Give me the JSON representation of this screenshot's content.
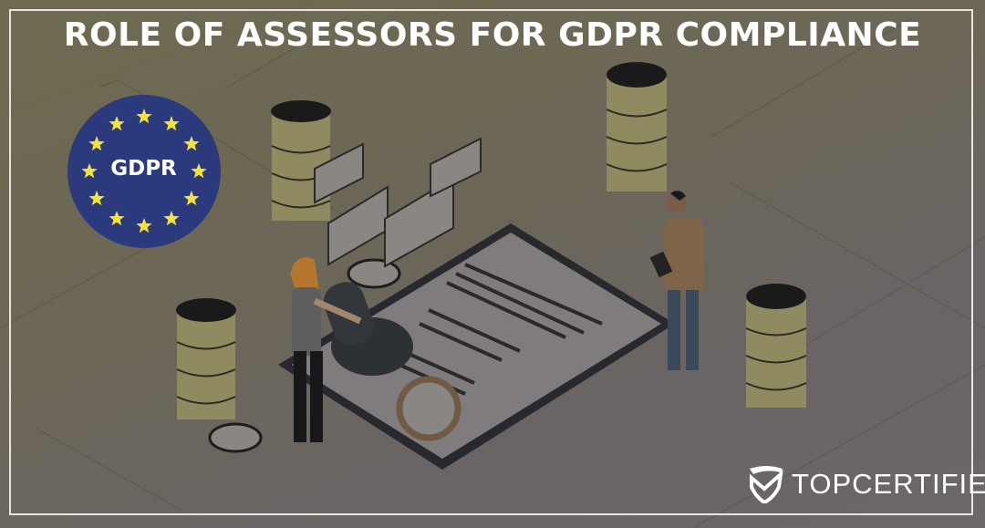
{
  "title": "ROLE OF ASSESSORS FOR GDPR COMPLIANCE",
  "badge": {
    "label": "GDPR",
    "icon": "eu-stars-flag-icon",
    "colors": {
      "circle": "#2b3a7c",
      "stars": "#f2e23a"
    }
  },
  "brand": {
    "name": "TOPCERTIFIER",
    "icon": "shield-check-icon"
  },
  "colors": {
    "background": "#6c6756",
    "frame": "#e8e6e2",
    "text": "#ffffff"
  }
}
